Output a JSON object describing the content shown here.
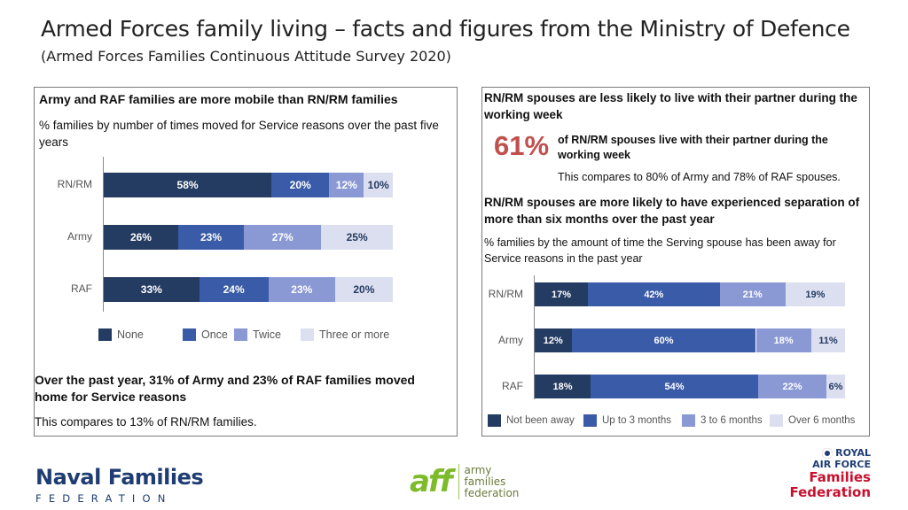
{
  "page": {
    "title": "Armed Forces family living – facts and figures from the Ministry of Defence",
    "subtitle": "(Armed Forces Families Continuous Attitude Survey 2020)"
  },
  "colors": {
    "none": "#243b62",
    "once": "#3a5ba7",
    "twice": "#8a98d4",
    "three_or_more": "#dcdff0",
    "highlight": "#c0504d"
  },
  "left_panel": {
    "heading": "Army and RAF families are more mobile than RN/RM families",
    "chart_caption": "% families by number of times moved for Service reasons over the past five years",
    "footer_bold": "Over the past year, 31% of Army and 23% of RAF families moved home for Service reasons",
    "footer_text": "This compares to 13% of RN/RM families."
  },
  "right_panel": {
    "heading": "RN/RM spouses are less likely to live with their partner during the working week",
    "big_stat": "61%",
    "stat_bold": "of RN/RM spouses live with their partner during the working week",
    "stat_compare": "This compares to 80% of Army and 78% of RAF spouses.",
    "heading2": "RN/RM spouses are more likely to have experienced separation of more than six months over the past year",
    "chart_caption": "% families by the amount of time the Serving spouse has been away for Service reasons in the past year"
  },
  "chart_data": [
    {
      "type": "bar",
      "orientation": "horizontal",
      "stacked": true,
      "categories": [
        "RN/RM",
        "Army",
        "RAF"
      ],
      "series": [
        {
          "name": "None",
          "values": [
            58,
            26,
            33
          ]
        },
        {
          "name": "Once",
          "values": [
            20,
            23,
            24
          ]
        },
        {
          "name": "Twice",
          "values": [
            12,
            27,
            23
          ]
        },
        {
          "name": "Three or more",
          "values": [
            10,
            25,
            20
          ]
        }
      ],
      "legend": "bottom",
      "unit": "%"
    },
    {
      "type": "bar",
      "orientation": "horizontal",
      "stacked": true,
      "categories": [
        "RN/RM",
        "Army",
        "RAF"
      ],
      "series": [
        {
          "name": "Not been  away",
          "values": [
            17,
            12,
            18
          ]
        },
        {
          "name": "Up to 3 months",
          "values": [
            42,
            60,
            54
          ]
        },
        {
          "name": "3 to 6 months",
          "values": [
            21,
            18,
            22
          ]
        },
        {
          "name": "Over 6 months",
          "values": [
            19,
            11,
            6
          ]
        }
      ],
      "legend": "bottom",
      "unit": "%"
    }
  ],
  "logos": {
    "nff_line1": "Naval Families",
    "nff_line2": "FEDERATION",
    "aff_mark": "aff",
    "aff_line1": "army",
    "aff_line2": "families",
    "aff_line3": "federation",
    "raf_line1": "ROYAL",
    "raf_line2": "AIR FORCE",
    "raf_line3": "Families",
    "raf_line4": "Federation"
  }
}
